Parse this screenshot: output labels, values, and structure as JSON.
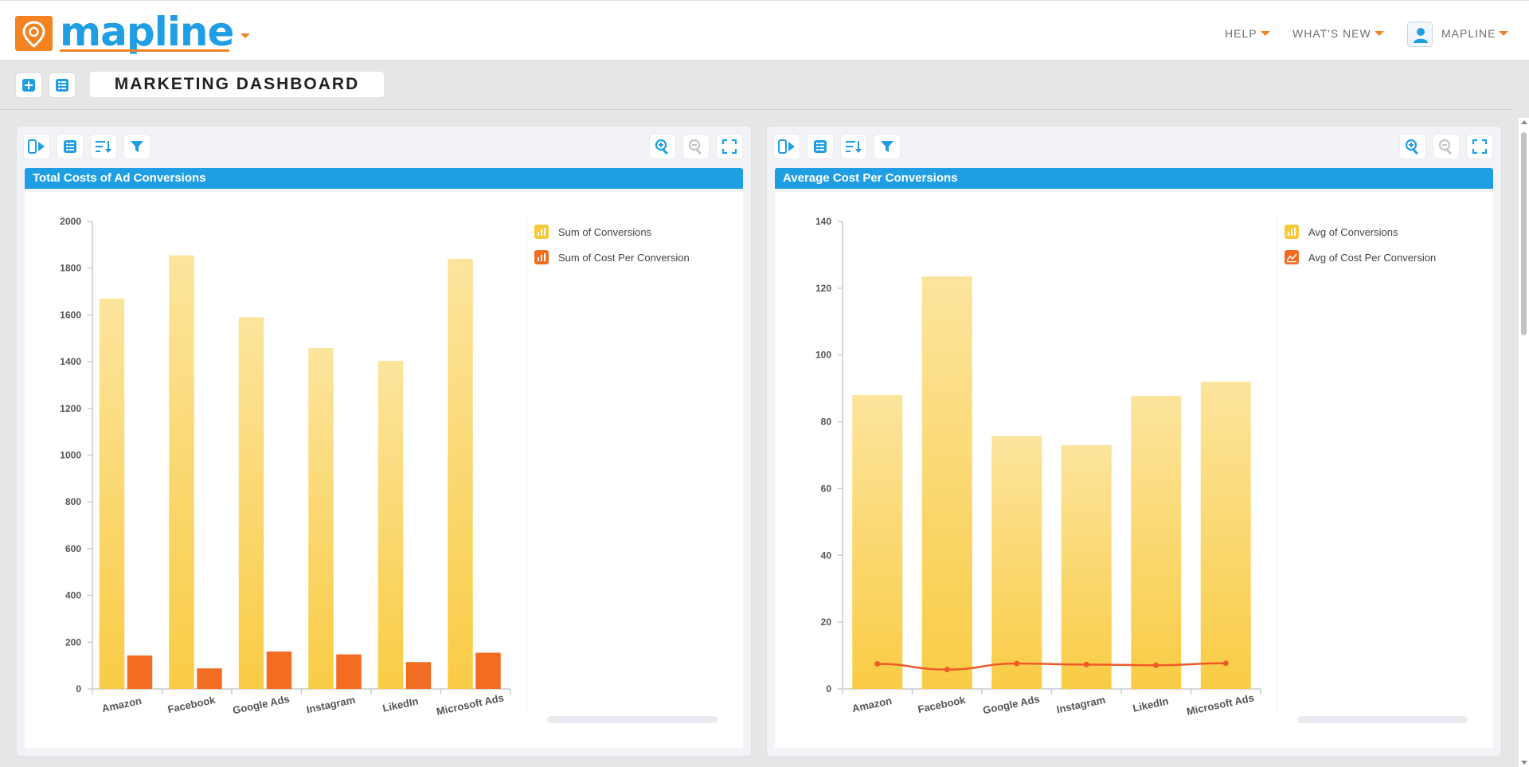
{
  "app": {
    "logo_text": "mapline"
  },
  "nav": {
    "help": "HELP",
    "whats_new": "WHAT'S NEW",
    "user": "MAPLINE"
  },
  "dashboard": {
    "title": "MARKETING DASHBOARD"
  },
  "colors": {
    "brand_blue": "#1f9ee3",
    "brand_orange": "#f58220",
    "bar_yellow_top": "#fce49d",
    "bar_yellow_bottom": "#f9cc45",
    "bar_orange": "#f26c22",
    "line_orange": "#f05a28"
  },
  "panels": [
    {
      "title": "Total Costs of Ad Conversions",
      "legend": [
        "Sum of Conversions",
        "Sum of Cost Per Conversion"
      ]
    },
    {
      "title": "Average Cost Per Conversions",
      "legend": [
        "Avg of Conversions",
        "Avg of Cost Per Conversion"
      ]
    }
  ],
  "chart_data": [
    {
      "type": "bar",
      "title": "Total Costs of Ad Conversions",
      "categories": [
        "Amazon",
        "Facebook",
        "Google Ads",
        "Instagram",
        "LikedIn",
        "Microsoft Ads"
      ],
      "series": [
        {
          "name": "Sum of Conversions",
          "values": [
            1670,
            1855,
            1590,
            1458,
            1403,
            1840
          ]
        },
        {
          "name": "Sum of Cost Per Conversion",
          "values": [
            143,
            88,
            160,
            148,
            115,
            155
          ]
        }
      ],
      "ylim": [
        0,
        2000
      ],
      "yticks": [
        0,
        200,
        400,
        600,
        800,
        1000,
        1200,
        1400,
        1600,
        1800,
        2000
      ],
      "legend_position": "top-right",
      "grid": false
    },
    {
      "type": "bar",
      "title": "Average Cost Per Conversions",
      "categories": [
        "Amazon",
        "Facebook",
        "Google Ads",
        "Instagram",
        "LikedIn",
        "Microsoft Ads"
      ],
      "series": [
        {
          "name": "Avg of Conversions",
          "type": "bar",
          "values": [
            88,
            123.5,
            75.8,
            73,
            87.8,
            92
          ]
        },
        {
          "name": "Avg of Cost Per Conversion",
          "type": "line",
          "values": [
            7.5,
            5.8,
            7.6,
            7.3,
            7.1,
            7.7
          ]
        }
      ],
      "ylim": [
        0,
        140
      ],
      "yticks": [
        0,
        20,
        40,
        60,
        80,
        100,
        120,
        140
      ],
      "legend_position": "top-right",
      "grid": false
    }
  ]
}
